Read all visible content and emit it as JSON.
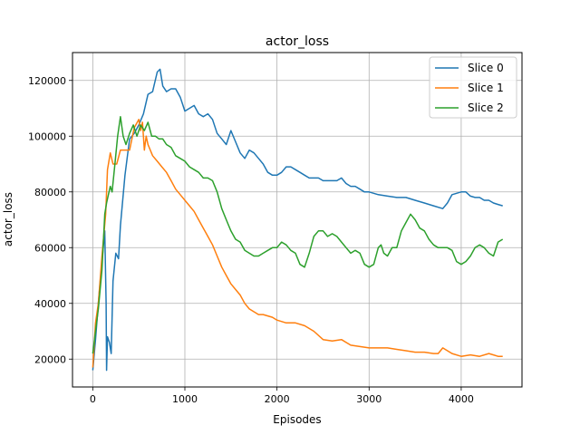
{
  "chart_data": {
    "type": "line",
    "title": "actor_loss",
    "xlabel": "Episodes",
    "ylabel": "actor_loss",
    "xlim": [
      -220,
      4660
    ],
    "ylim": [
      10000,
      130000
    ],
    "xticks": [
      0,
      1000,
      2000,
      3000,
      4000
    ],
    "xtick_labels": [
      "0",
      "1000",
      "2000",
      "3000",
      "4000"
    ],
    "yticks": [
      20000,
      40000,
      60000,
      80000,
      100000,
      120000
    ],
    "ytick_labels": [
      "20000",
      "40000",
      "60000",
      "80000",
      "100000",
      "120000"
    ],
    "grid": true,
    "legend_position": "top-right",
    "series": [
      {
        "name": "Slice 0",
        "color": "#1f77b4",
        "x": [
          0,
          30,
          60,
          100,
          130,
          145,
          150,
          160,
          180,
          200,
          220,
          250,
          280,
          300,
          350,
          400,
          450,
          500,
          550,
          600,
          650,
          700,
          730,
          760,
          800,
          850,
          900,
          950,
          1000,
          1050,
          1100,
          1150,
          1200,
          1250,
          1300,
          1350,
          1400,
          1450,
          1500,
          1550,
          1600,
          1650,
          1700,
          1750,
          1800,
          1850,
          1900,
          1950,
          2000,
          2050,
          2100,
          2150,
          2200,
          2250,
          2300,
          2350,
          2400,
          2450,
          2500,
          2550,
          2600,
          2650,
          2700,
          2750,
          2800,
          2850,
          2900,
          2950,
          3000,
          3100,
          3200,
          3300,
          3400,
          3500,
          3600,
          3700,
          3800,
          3850,
          3900,
          3950,
          4000,
          4050,
          4100,
          4150,
          4200,
          4250,
          4300,
          4350,
          4400,
          4450
        ],
        "values": [
          16000,
          27000,
          40000,
          55000,
          66000,
          40000,
          16000,
          28000,
          26000,
          22000,
          48000,
          58000,
          56000,
          68000,
          86000,
          99000,
          101000,
          104000,
          108000,
          115000,
          116000,
          123000,
          124000,
          118000,
          116000,
          117000,
          117000,
          114000,
          109000,
          110000,
          111000,
          108000,
          107000,
          108000,
          106000,
          101000,
          99000,
          97000,
          102000,
          98000,
          94000,
          92000,
          95000,
          94000,
          92000,
          90000,
          87000,
          86000,
          86000,
          87000,
          89000,
          89000,
          88000,
          87000,
          86000,
          85000,
          85000,
          85000,
          84000,
          84000,
          84000,
          84000,
          85000,
          83000,
          82000,
          82000,
          81000,
          80000,
          80000,
          79000,
          78500,
          78000,
          78000,
          77000,
          76000,
          75000,
          74000,
          76000,
          79000,
          79500,
          80000,
          80000,
          78500,
          78000,
          78000,
          77000,
          77000,
          76000,
          75500,
          75000
        ]
      },
      {
        "name": "Slice 1",
        "color": "#ff7f0e",
        "x": [
          0,
          30,
          60,
          100,
          140,
          160,
          190,
          220,
          260,
          300,
          350,
          400,
          450,
          500,
          520,
          540,
          560,
          580,
          600,
          650,
          700,
          750,
          800,
          850,
          900,
          950,
          1000,
          1050,
          1100,
          1150,
          1200,
          1250,
          1300,
          1350,
          1400,
          1450,
          1500,
          1550,
          1600,
          1650,
          1700,
          1750,
          1800,
          1850,
          1900,
          1950,
          2000,
          2100,
          2200,
          2300,
          2400,
          2500,
          2600,
          2700,
          2800,
          2900,
          3000,
          3100,
          3200,
          3300,
          3400,
          3500,
          3600,
          3700,
          3750,
          3800,
          3850,
          3900,
          4000,
          4100,
          4200,
          4300,
          4350,
          4400,
          4450
        ],
        "values": [
          17000,
          33000,
          40000,
          57000,
          72000,
          88000,
          94000,
          90000,
          90000,
          95000,
          95000,
          95000,
          103000,
          106000,
          102000,
          105000,
          95000,
          100000,
          97000,
          93000,
          91000,
          89000,
          87000,
          84000,
          81000,
          79000,
          77000,
          75000,
          73000,
          70000,
          67000,
          64000,
          61000,
          57000,
          53000,
          50000,
          47000,
          45000,
          43000,
          40000,
          38000,
          37000,
          36000,
          36000,
          35500,
          35000,
          34000,
          33000,
          33000,
          32000,
          30000,
          27000,
          26500,
          27000,
          25000,
          24500,
          24000,
          24000,
          24000,
          23500,
          23000,
          22500,
          22500,
          22000,
          22000,
          24000,
          23000,
          22000,
          21000,
          21500,
          21000,
          22000,
          21500,
          21000,
          21000
        ]
      },
      {
        "name": "Slice 2",
        "color": "#2ca02c",
        "x": [
          0,
          30,
          60,
          100,
          130,
          150,
          170,
          190,
          210,
          240,
          270,
          300,
          330,
          360,
          400,
          440,
          480,
          520,
          560,
          600,
          640,
          680,
          720,
          760,
          800,
          850,
          900,
          950,
          1000,
          1050,
          1100,
          1150,
          1200,
          1250,
          1300,
          1350,
          1400,
          1450,
          1500,
          1550,
          1600,
          1650,
          1700,
          1750,
          1800,
          1850,
          1900,
          1950,
          2000,
          2050,
          2100,
          2150,
          2200,
          2250,
          2300,
          2350,
          2400,
          2450,
          2500,
          2550,
          2600,
          2650,
          2700,
          2750,
          2800,
          2850,
          2900,
          2950,
          3000,
          3050,
          3100,
          3130,
          3160,
          3200,
          3250,
          3300,
          3350,
          3400,
          3450,
          3500,
          3550,
          3600,
          3650,
          3700,
          3750,
          3800,
          3850,
          3900,
          3950,
          4000,
          4050,
          4100,
          4150,
          4200,
          4250,
          4300,
          4350,
          4400,
          4450
        ],
        "values": [
          22000,
          30000,
          38000,
          52000,
          72000,
          76000,
          79000,
          82000,
          80000,
          90000,
          100000,
          107000,
          100000,
          97000,
          101000,
          104000,
          100000,
          104000,
          102000,
          105000,
          100000,
          100000,
          99000,
          99000,
          97000,
          96000,
          93000,
          92000,
          91000,
          89000,
          88000,
          87000,
          85000,
          85000,
          84000,
          80000,
          74000,
          70000,
          66000,
          63000,
          62000,
          59000,
          58000,
          57000,
          57000,
          58000,
          59000,
          60000,
          60000,
          62000,
          61000,
          59000,
          58000,
          54000,
          53000,
          58000,
          64000,
          66000,
          66000,
          64000,
          65000,
          64000,
          62000,
          60000,
          58000,
          59000,
          58000,
          54000,
          53000,
          54000,
          60000,
          61000,
          58000,
          57000,
          60000,
          60000,
          66000,
          69000,
          72000,
          70000,
          67000,
          66000,
          63000,
          61000,
          60000,
          60000,
          60000,
          59000,
          55000,
          54000,
          55000,
          57000,
          60000,
          61000,
          60000,
          58000,
          57000,
          62000,
          63000
        ]
      }
    ]
  }
}
